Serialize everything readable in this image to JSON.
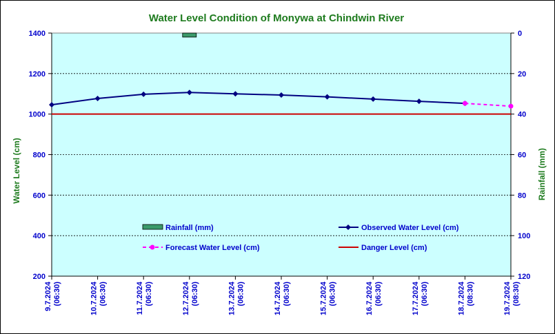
{
  "chart_data": {
    "type": "line",
    "title": "Water Level Condition of Monywa at Chindwin River",
    "ylabel": "Water Level (cm)",
    "y2label": "Rainfall (mm)",
    "ylim": [
      200,
      1400
    ],
    "y2lim": [
      0,
      120
    ],
    "y2_inverted": true,
    "yticks": [
      "1400",
      "1200",
      "1000",
      "800",
      "600",
      "400",
      "200"
    ],
    "y2ticks": [
      "0",
      "20",
      "40",
      "60",
      "80",
      "100",
      "120"
    ],
    "categories": [
      [
        "9.7.2024",
        "(06:30)"
      ],
      [
        "10.7.2024",
        "(06:30)"
      ],
      [
        "11.7.2024",
        "(06:30)"
      ],
      [
        "12.7.2024",
        "(06:30)"
      ],
      [
        "13.7.2024",
        "(06:30)"
      ],
      [
        "14.7.2024",
        "(06:30)"
      ],
      [
        "15.7.2024",
        "(06:30)"
      ],
      [
        "16.7.2024",
        "(06:30)"
      ],
      [
        "17.7.2024",
        "(06:30)"
      ],
      [
        "18.7.2024",
        "(08:30)"
      ],
      [
        "19.7.2024",
        "(08:30)"
      ]
    ],
    "series": [
      {
        "name": "Rainfall (mm)",
        "kind": "bar",
        "axis": "right",
        "color": "#3a9a6a",
        "values": [
          0,
          0,
          0,
          2,
          0,
          0,
          0,
          0,
          0,
          null,
          null
        ]
      },
      {
        "name": "Observed Water Level (cm)",
        "kind": "line",
        "color": "#000080",
        "values": [
          1046,
          1077,
          1098,
          1107,
          1100,
          1094,
          1085,
          1074,
          1063,
          1053,
          null
        ]
      },
      {
        "name": "Forecast Water Level (cm)",
        "kind": "dashed",
        "color": "#ff00ff",
        "values": [
          null,
          null,
          null,
          null,
          null,
          null,
          null,
          null,
          null,
          1053,
          1039
        ]
      },
      {
        "name": "Danger Level (cm)",
        "kind": "constant",
        "color": "#cc0000",
        "value": 1000
      }
    ],
    "grid": true,
    "legend": "lower-center",
    "colors": {
      "plot_bg": "#ccffff",
      "title": "#1e7b1e",
      "ticks": "#0000cc"
    }
  }
}
